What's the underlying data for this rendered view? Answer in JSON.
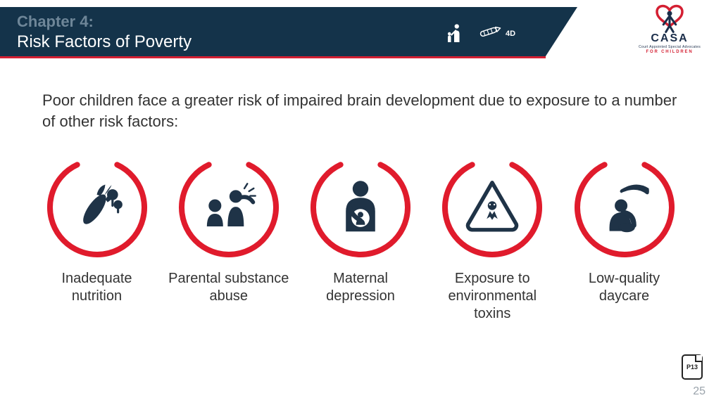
{
  "colors": {
    "banner_bg": "#14334a",
    "accent_red": "#d41f32",
    "ring_red": "#e01b2c",
    "icon_navy": "#1f3347",
    "text_body": "#333333",
    "chapter_muted": "#6e8698",
    "page_num": "#9aa3ab"
  },
  "header": {
    "chapter": "Chapter 4:",
    "title": "Risk Factors of Poverty",
    "badge": "4D"
  },
  "logo": {
    "name": "CASA",
    "sub": "Court Appointed Special Advocates",
    "sub2": "FOR CHILDREN"
  },
  "intro": "Poor children face a greater risk of impaired brain development due to exposure to a number of other risk factors:",
  "ring": {
    "stroke_width": 8,
    "gap_start_deg": -115,
    "gap_end_deg": -65,
    "radius": 67
  },
  "factors": [
    {
      "label": "Inadequate nutrition",
      "icon": "nutrition-icon"
    },
    {
      "label": "Parental substance abuse",
      "icon": "parental-abuse-icon"
    },
    {
      "label": "Maternal depression",
      "icon": "maternal-icon"
    },
    {
      "label": "Exposure to environmental toxins",
      "icon": "toxins-icon"
    },
    {
      "label": "Low-quality daycare",
      "icon": "daycare-icon"
    }
  ],
  "footer": {
    "page_number": "25",
    "doc_badge": "P13"
  }
}
